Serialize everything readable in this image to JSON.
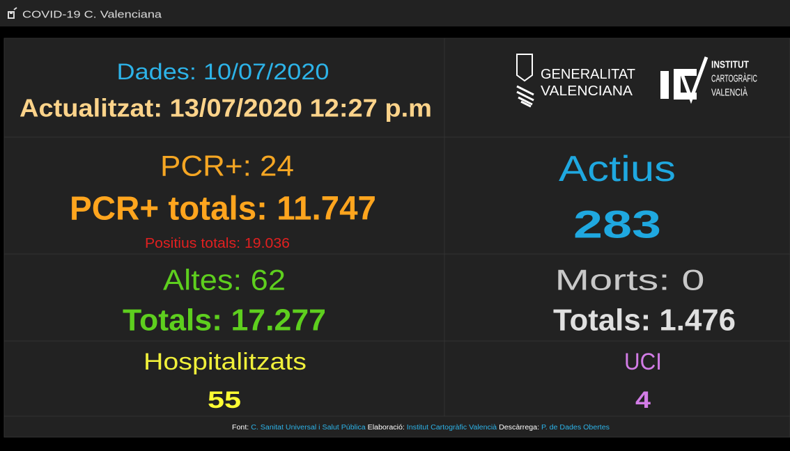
{
  "header": {
    "title": "COVID-19 C. Valenciana"
  },
  "dates": {
    "data": "Dades: 10/07/2020",
    "updated": "Actualitzat: 13/07/2020 12:27 p.m"
  },
  "logos": {
    "generalitat": [
      "GENERALITAT",
      "VALENCIANA"
    ],
    "icv": [
      "INSTITUT",
      "CARTOGRÀFIC",
      "VALENCIÀ"
    ]
  },
  "pcr": {
    "daily": "PCR+: 24",
    "total": "PCR+ totals: 11.747",
    "positives": "Positius totals: 19.036"
  },
  "active": {
    "label": "Actius",
    "value": "283"
  },
  "discharges": {
    "daily": "Altes: 62",
    "total": "Totals: 17.277"
  },
  "deaths": {
    "daily": "Morts: 0",
    "total": "Totals: 1.476"
  },
  "hospital": {
    "label": "Hospitalitzats",
    "value": "55"
  },
  "icu": {
    "label": "UCI",
    "value": "4"
  },
  "footer": {
    "source_label": "Font:",
    "source": "C. Sanitat Universal i Salut Pública",
    "made_label": "Elaboració:",
    "made": "Institut Cartogràfic Valencià",
    "download_label": "Descàrrega:",
    "download": "P. de Dades Obertes"
  }
}
